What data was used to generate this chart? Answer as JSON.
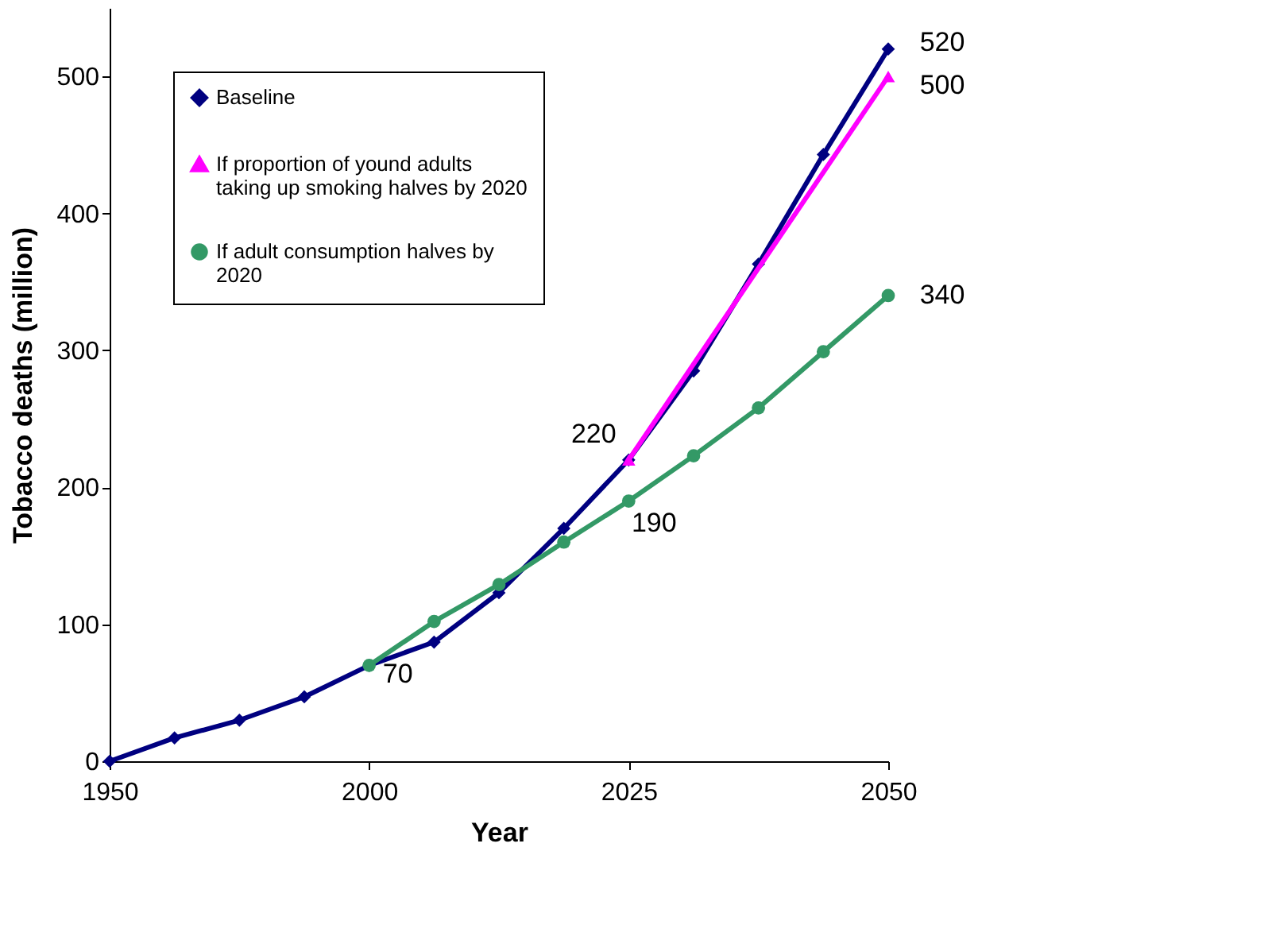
{
  "chart_data": {
    "type": "line",
    "xlabel": "Year",
    "ylabel": "Tobacco deaths (million)",
    "categories": [
      "1950",
      null,
      null,
      null,
      "2000",
      null,
      null,
      null,
      "2025",
      null,
      null,
      null,
      "2050"
    ],
    "ylim": [
      0,
      550
    ],
    "yticks": [
      0,
      100,
      200,
      300,
      400,
      500
    ],
    "grid": false,
    "legend": "top left",
    "series": [
      {
        "name": "Baseline",
        "color": "#000080",
        "marker": "diamond",
        "values": [
          0,
          17,
          30,
          47,
          70,
          87,
          123,
          170,
          220,
          285,
          363,
          443,
          520
        ],
        "value_labels": [
          null,
          null,
          null,
          null,
          null,
          null,
          null,
          null,
          "220",
          null,
          null,
          null,
          "520"
        ]
      },
      {
        "name": "If proportion of yound adults taking up smoking halves by 2020",
        "color": "#ff00ff",
        "marker": "triangle",
        "values": [
          null,
          null,
          null,
          null,
          null,
          null,
          null,
          null,
          220,
          null,
          null,
          null,
          500
        ],
        "value_labels": [
          null,
          null,
          null,
          null,
          null,
          null,
          null,
          null,
          null,
          null,
          null,
          null,
          "500"
        ]
      },
      {
        "name": "If adult consumption halves by 2020",
        "color": "#339966",
        "marker": "circle",
        "values": [
          null,
          null,
          null,
          null,
          70,
          102,
          129,
          160,
          190,
          223,
          258,
          299,
          340
        ],
        "value_labels": [
          null,
          null,
          null,
          null,
          "70",
          null,
          null,
          null,
          "190",
          null,
          null,
          null,
          "340"
        ]
      }
    ]
  }
}
